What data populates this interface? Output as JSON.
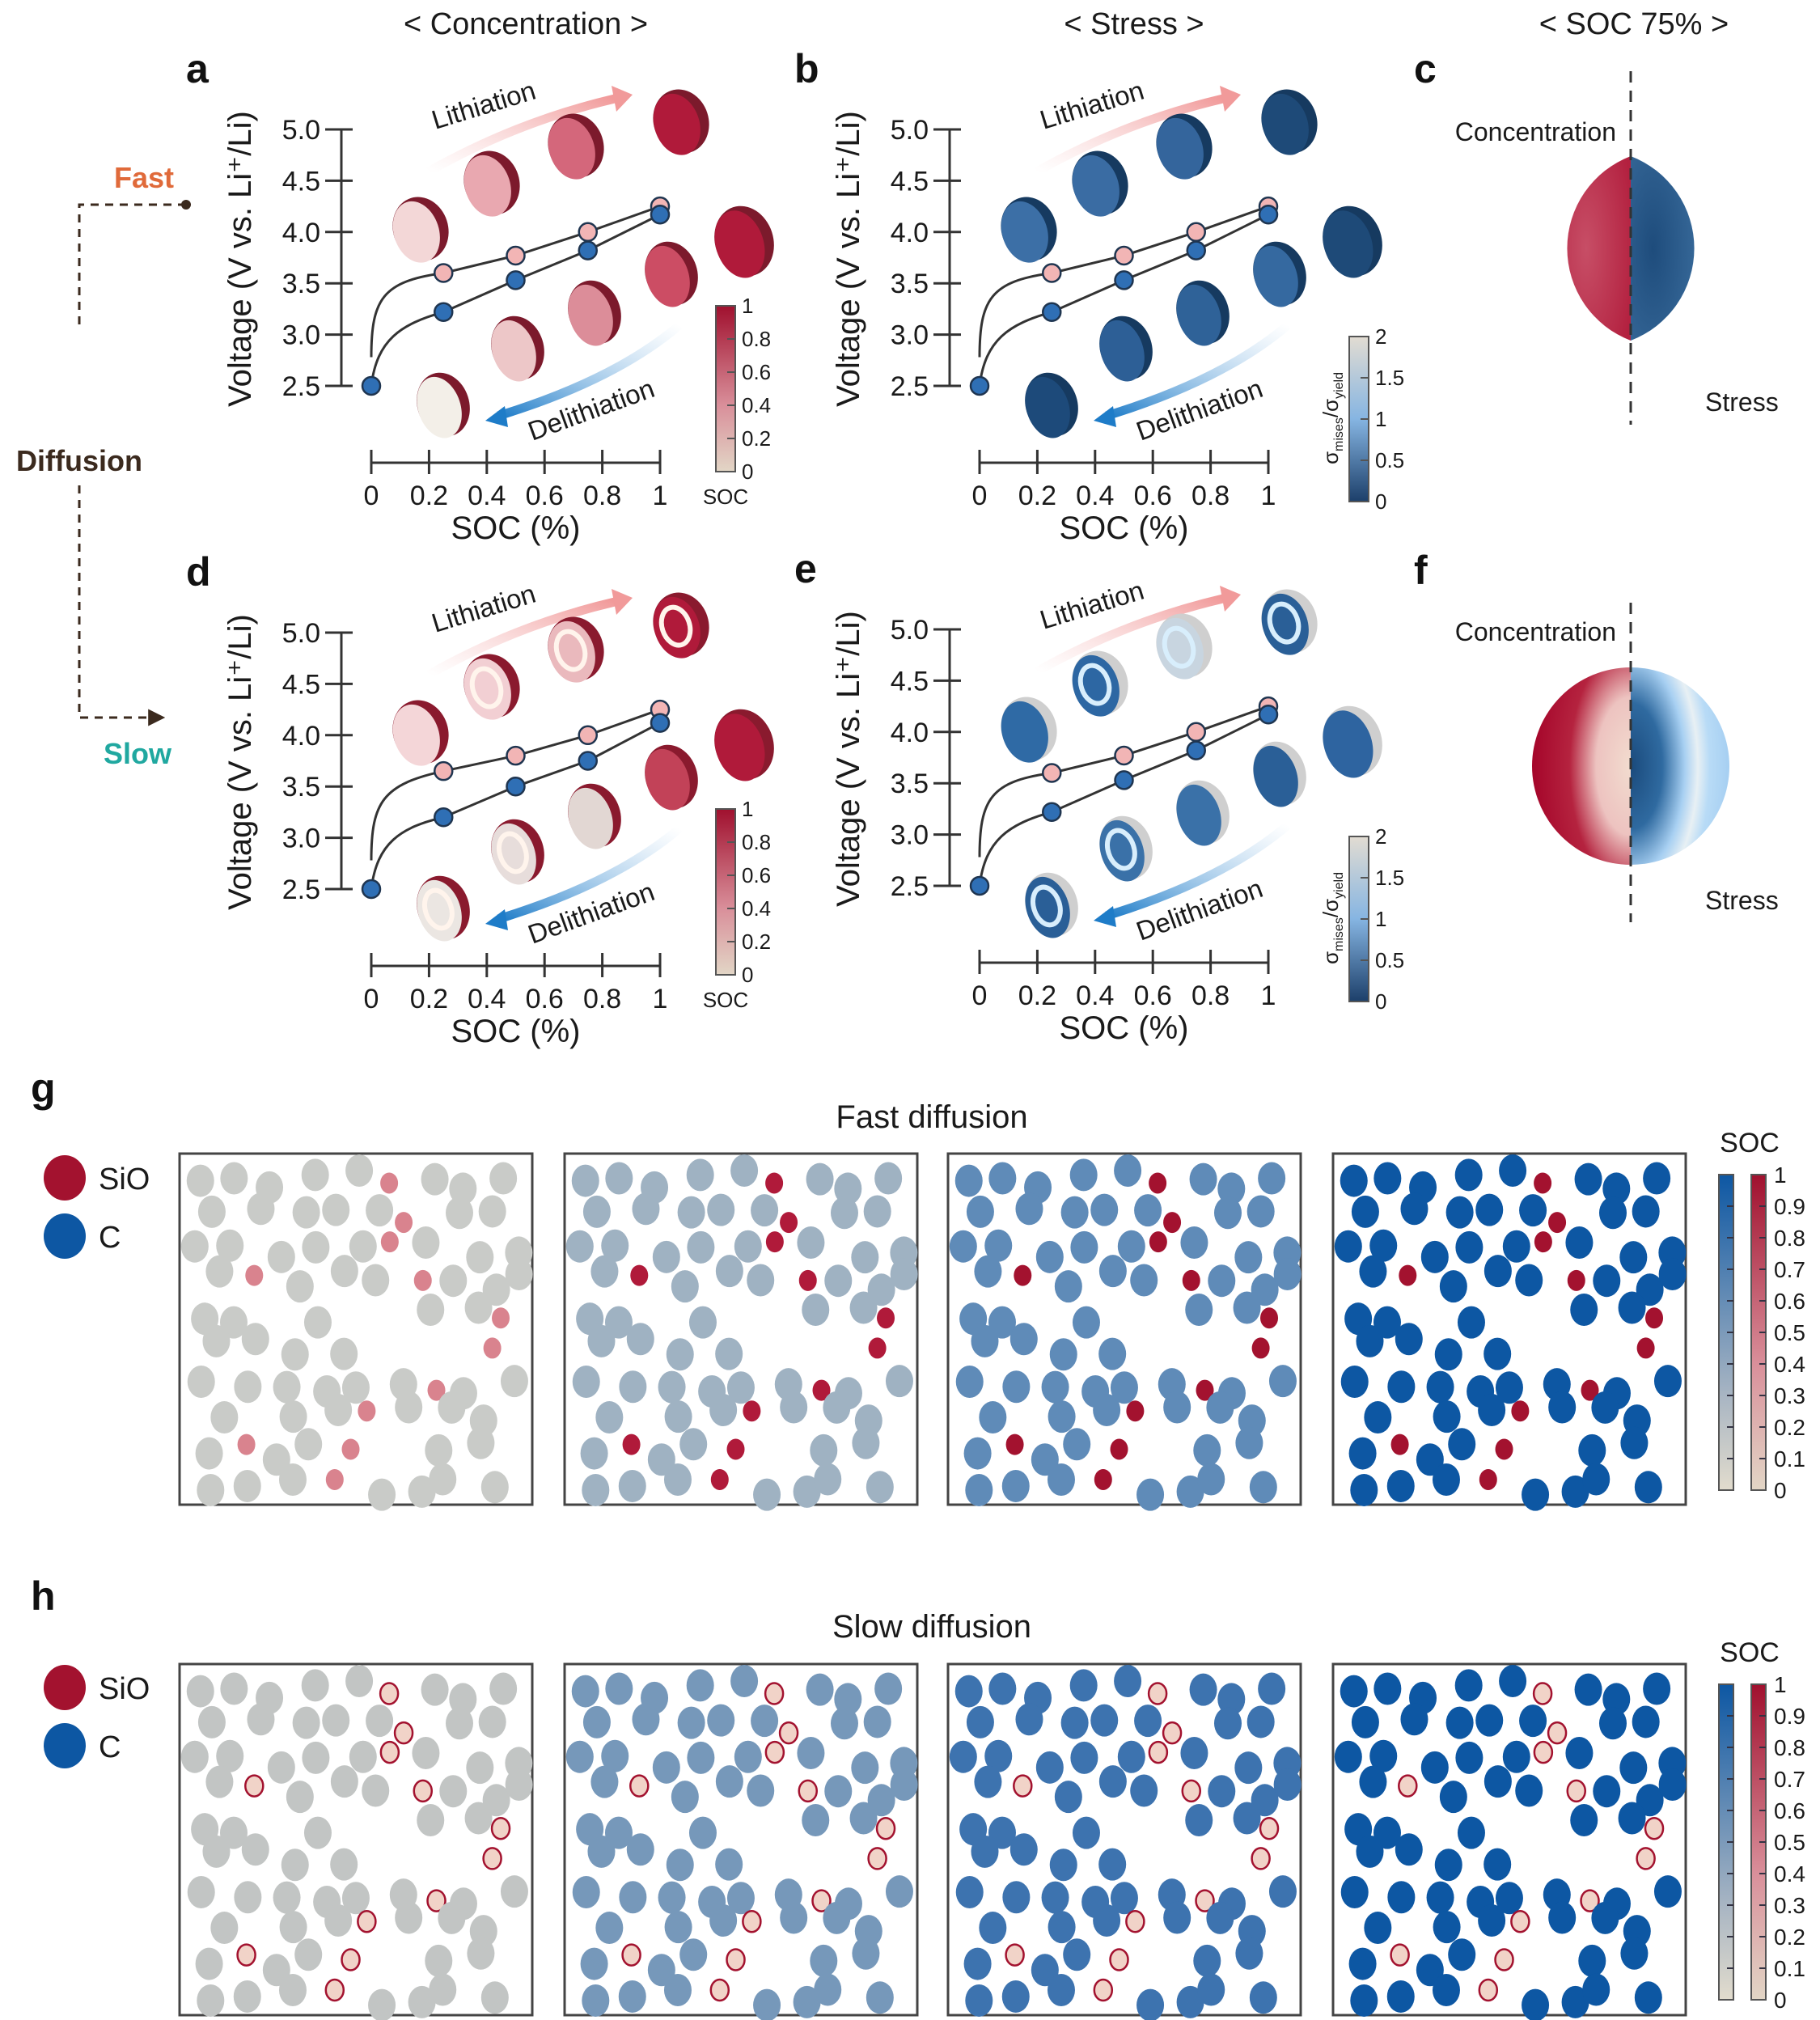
{
  "headers": {
    "concentration": "< Concentration >",
    "stress": "< Stress >",
    "soc75": "< SOC 75% >"
  },
  "diffusion_legend": {
    "fast": "Fast",
    "diffusion": "Diffusion",
    "slow": "Slow",
    "fast_color": "#e06a3a",
    "diffusion_color": "#3b2a1e",
    "slow_color": "#20a8a0"
  },
  "panel_letters": {
    "a": "a",
    "b": "b",
    "c": "c",
    "d": "d",
    "e": "e",
    "f": "f",
    "g": "g",
    "h": "h"
  },
  "arrows": {
    "lithiation": "Lithiation",
    "delithiation": "Delithiation"
  },
  "split_sphere": {
    "left_label": "Concentration",
    "right_label": "Stress"
  },
  "colorbars": {
    "soc": {
      "label": "SOC",
      "ticks": [
        "0",
        "0.2",
        "0.4",
        "0.6",
        "0.8",
        "1"
      ]
    },
    "stress": {
      "label_main": "σ",
      "label_sub1": "mises",
      "label_slash": "/σ",
      "label_sub2": "yield",
      "ticks": [
        "0",
        "0.5",
        "1",
        "1.5",
        "2"
      ]
    },
    "particle": {
      "label": "SOC",
      "ticks": [
        "0",
        "0.1",
        "0.2",
        "0.3",
        "0.4",
        "0.5",
        "0.6",
        "0.7",
        "0.8",
        "0.9",
        "1"
      ]
    }
  },
  "particle_legend": {
    "sio": "SiO",
    "c": "C",
    "sio_color": "#a3122f",
    "c_color": "#0d57a3"
  },
  "particle_titles": {
    "g": "Fast diffusion",
    "h": "Slow diffusion"
  },
  "chart_data": [
    {
      "id": "a",
      "type": "line",
      "title": "Concentration — fast diffusion",
      "xlabel": "SOC (%)",
      "ylabel": "Voltage (V vs. Li⁺/Li)",
      "xlim": [
        0,
        1
      ],
      "ylim": [
        2.5,
        5.0
      ],
      "xticks": [
        "0",
        "0.2",
        "0.4",
        "0.6",
        "0.8",
        "1"
      ],
      "yticks": [
        "2.5",
        "3.0",
        "3.5",
        "4.0",
        "4.5",
        "5.0"
      ],
      "series": [
        {
          "name": "Lithiation",
          "color": "#f2b5b5",
          "x": [
            0.25,
            0.5,
            0.75,
            1.0
          ],
          "y": [
            3.6,
            3.77,
            4.0,
            4.25
          ]
        },
        {
          "name": "Delithiation",
          "color": "#2f6fb5",
          "x": [
            0,
            0.25,
            0.5,
            0.75,
            1.0
          ],
          "y": [
            2.5,
            3.22,
            3.53,
            3.82,
            4.17
          ]
        }
      ],
      "sphere_theme": "concentration-fast"
    },
    {
      "id": "b",
      "type": "line",
      "title": "Stress — fast diffusion",
      "xlabel": "SOC (%)",
      "ylabel": "Voltage (V vs. Li⁺/Li)",
      "xlim": [
        0,
        1
      ],
      "ylim": [
        2.5,
        5.0
      ],
      "xticks": [
        "0",
        "0.2",
        "0.4",
        "0.6",
        "0.8",
        "1"
      ],
      "yticks": [
        "2.5",
        "3.0",
        "3.5",
        "4.0",
        "4.5",
        "5.0"
      ],
      "series": [
        {
          "name": "Lithiation",
          "color": "#f2b5b5",
          "x": [
            0.25,
            0.5,
            0.75,
            1.0
          ],
          "y": [
            3.6,
            3.77,
            4.0,
            4.25
          ]
        },
        {
          "name": "Delithiation",
          "color": "#2f6fb5",
          "x": [
            0,
            0.25,
            0.5,
            0.75,
            1.0
          ],
          "y": [
            2.5,
            3.22,
            3.53,
            3.82,
            4.17
          ]
        }
      ],
      "sphere_theme": "stress-fast"
    },
    {
      "id": "d",
      "type": "line",
      "title": "Concentration — slow diffusion",
      "xlabel": "SOC (%)",
      "ylabel": "Voltage (V vs. Li⁺/Li)",
      "xlim": [
        0,
        1
      ],
      "ylim": [
        2.5,
        5.0
      ],
      "xticks": [
        "0",
        "0.2",
        "0.4",
        "0.6",
        "0.8",
        "1"
      ],
      "yticks": [
        "2.5",
        "3.0",
        "3.5",
        "4.0",
        "4.5",
        "5.0"
      ],
      "series": [
        {
          "name": "Lithiation",
          "color": "#f2b5b5",
          "x": [
            0.25,
            0.5,
            0.75,
            1.0
          ],
          "y": [
            3.65,
            3.8,
            4.0,
            4.25
          ]
        },
        {
          "name": "Delithiation",
          "color": "#2f6fb5",
          "x": [
            0,
            0.25,
            0.5,
            0.75,
            1.0
          ],
          "y": [
            2.5,
            3.2,
            3.5,
            3.75,
            4.12
          ]
        }
      ],
      "sphere_theme": "concentration-slow"
    },
    {
      "id": "e",
      "type": "line",
      "title": "Stress — slow diffusion",
      "xlabel": "SOC (%)",
      "ylabel": "Voltage (V vs. Li⁺/Li)",
      "xlim": [
        0,
        1
      ],
      "ylim": [
        2.5,
        5.0
      ],
      "xticks": [
        "0",
        "0.2",
        "0.4",
        "0.6",
        "0.8",
        "1"
      ],
      "yticks": [
        "2.5",
        "3.0",
        "3.5",
        "4.0",
        "4.5",
        "5.0"
      ],
      "series": [
        {
          "name": "Lithiation",
          "color": "#f2b5b5",
          "x": [
            0.25,
            0.5,
            0.75,
            1.0
          ],
          "y": [
            3.6,
            3.77,
            4.0,
            4.25
          ]
        },
        {
          "name": "Delithiation",
          "color": "#2f6fb5",
          "x": [
            0,
            0.25,
            0.5,
            0.75,
            1.0
          ],
          "y": [
            2.5,
            3.22,
            3.53,
            3.82,
            4.17
          ]
        }
      ],
      "sphere_theme": "stress-slow"
    }
  ],
  "particle_stages": {
    "g": [
      {
        "c_color": "#c9cbc8",
        "sio_color": "#d9838e",
        "sio_ring": false
      },
      {
        "c_color": "#9fb2c2",
        "sio_color": "#b01a3a",
        "sio_ring": false
      },
      {
        "c_color": "#5f8bb8",
        "sio_color": "#a3122f",
        "sio_ring": false
      },
      {
        "c_color": "#0d57a3",
        "sio_color": "#a3122f",
        "sio_ring": false
      }
    ],
    "h": [
      {
        "c_color": "#c2c5c4",
        "sio_color": "#f1d3c8",
        "sio_ring": true
      },
      {
        "c_color": "#7698ba",
        "sio_color": "#f1d3c8",
        "sio_ring": true
      },
      {
        "c_color": "#3d73af",
        "sio_color": "#f1d3c8",
        "sio_ring": true
      },
      {
        "c_color": "#0d57a3",
        "sio_color": "#f1d3c8",
        "sio_ring": true
      }
    ]
  }
}
